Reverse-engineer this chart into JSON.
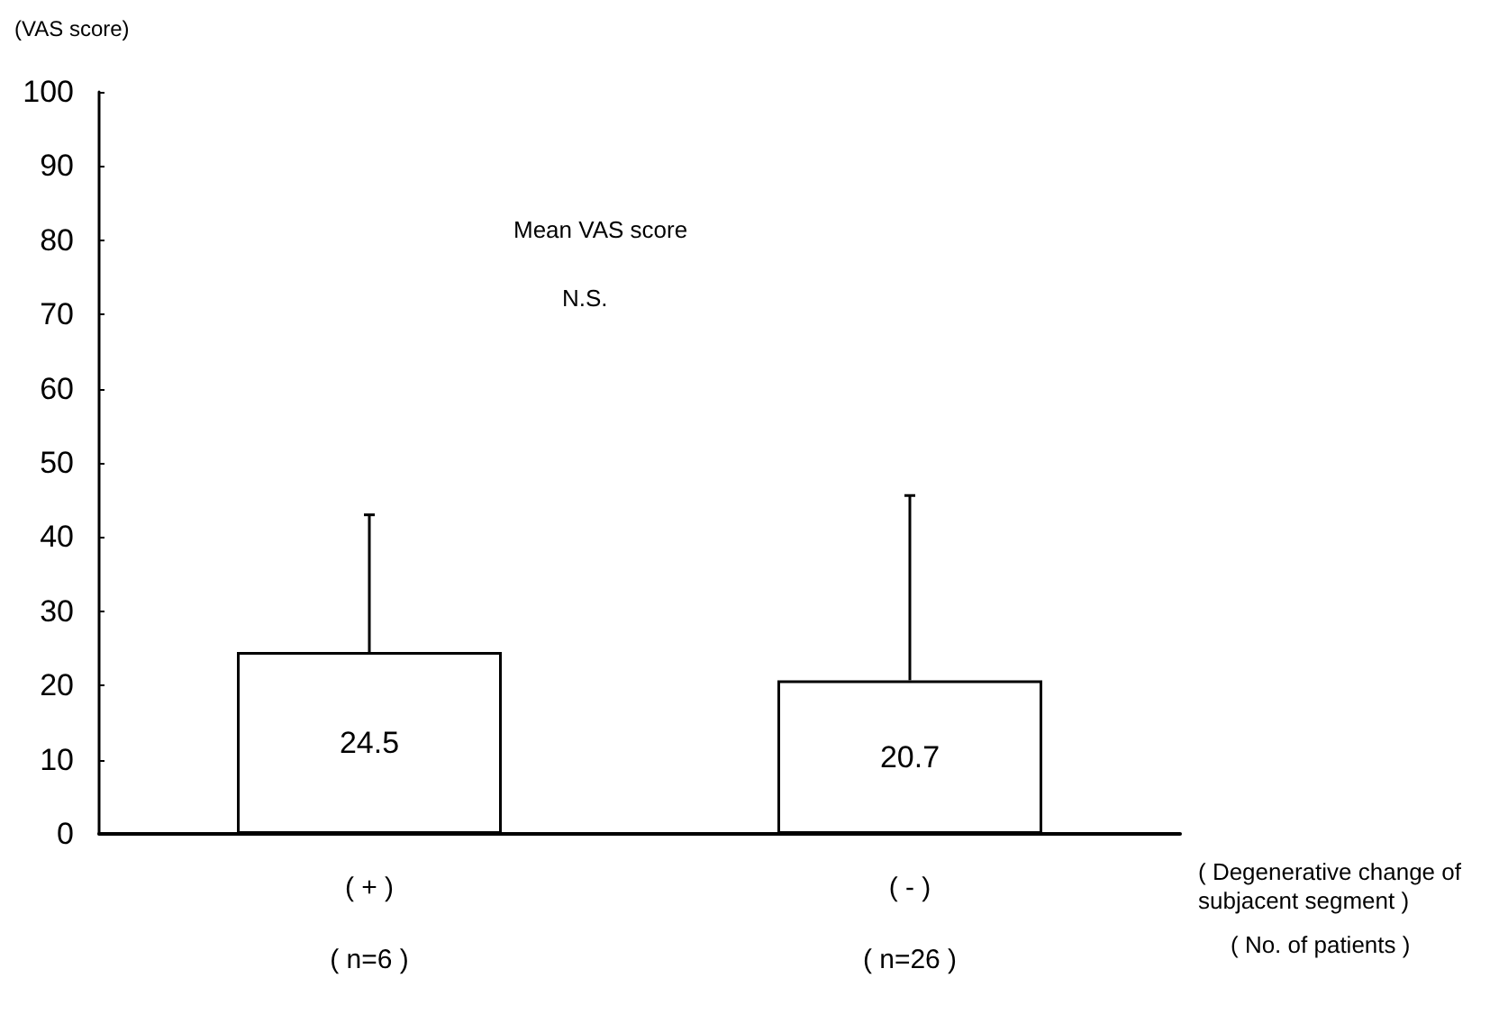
{
  "chart_data": {
    "type": "bar",
    "title": "Mean VAS score",
    "ylabel": "(VAS score)",
    "xlabel": "( Degenerative change of subjacent segment )",
    "categories": [
      "( + )\n\n( n=6 )",
      "( - )\n\n( n=26 )"
    ],
    "values": [
      24.5,
      20.7
    ],
    "color": "#ffffff",
    "errors": [
      [
        24.5,
        43.0
      ],
      [
        20.7,
        45.6
      ]
    ],
    "data_labels": true,
    "ylim": [
      0,
      100
    ],
    "yticks": [
      0,
      10,
      20,
      30,
      40,
      50,
      60,
      70,
      80,
      90,
      100
    ],
    "grid": false,
    "annotations": [
      "N.S.",
      "( No. of patients )"
    ]
  }
}
